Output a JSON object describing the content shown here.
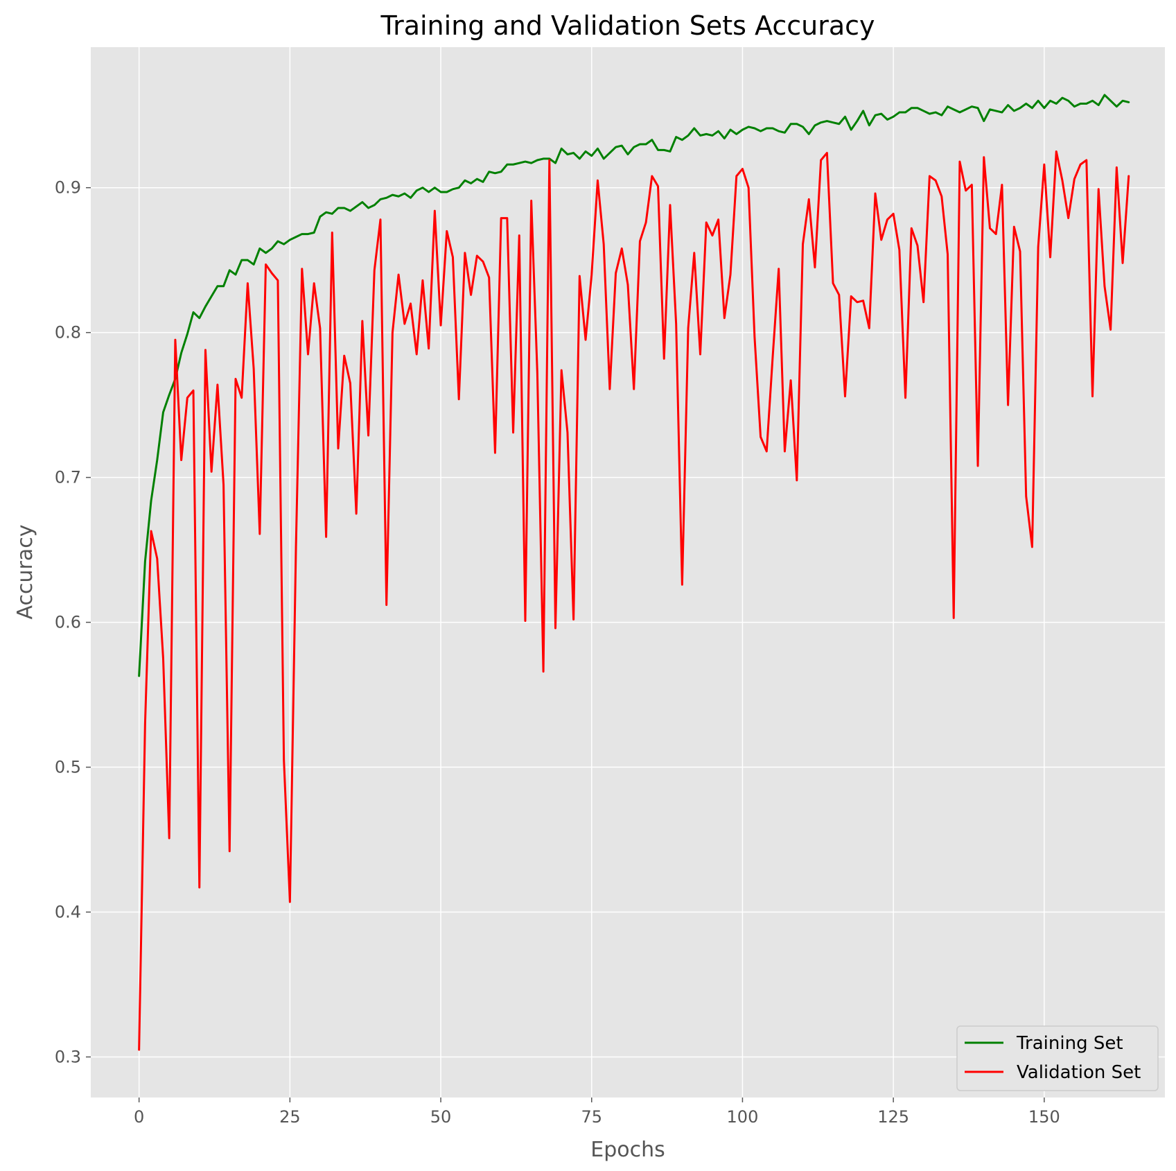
{
  "chart_data": {
    "type": "line",
    "title": "Training and Validation Sets Accuracy",
    "xlabel": "Epochs",
    "ylabel": "Accuracy",
    "xlim": [
      -8,
      170
    ],
    "ylim": [
      0.272,
      0.997
    ],
    "xticks": [
      0,
      25,
      50,
      75,
      100,
      125,
      150
    ],
    "yticks": [
      0.3,
      0.4,
      0.5,
      0.6,
      0.7,
      0.8,
      0.9
    ],
    "grid": true,
    "legend_position": "lower-right",
    "colors": {
      "background": "#e5e5e5",
      "grid": "#ffffff",
      "training": "#008000",
      "validation": "#ff0000"
    },
    "series": [
      {
        "name": "Training Set",
        "color": "#008000",
        "x": [
          0,
          1,
          2,
          3,
          4,
          5,
          6,
          7,
          8,
          9,
          10,
          11,
          12,
          13,
          14,
          15,
          16,
          17,
          18,
          19,
          20,
          21,
          22,
          23,
          24,
          25,
          26,
          27,
          28,
          29,
          30,
          31,
          32,
          33,
          34,
          35,
          36,
          37,
          38,
          39,
          40,
          41,
          42,
          43,
          44,
          45,
          46,
          47,
          48,
          49,
          50,
          51,
          52,
          53,
          54,
          55,
          56,
          57,
          58,
          59,
          60,
          61,
          62,
          63,
          64,
          65,
          66,
          67,
          68,
          69,
          70,
          71,
          72,
          73,
          74,
          75,
          76,
          77,
          78,
          79,
          80,
          81,
          82,
          83,
          84,
          85,
          86,
          87,
          88,
          89,
          90,
          91,
          92,
          93,
          94,
          95,
          96,
          97,
          98,
          99,
          100,
          101,
          102,
          103,
          104,
          105,
          106,
          107,
          108,
          109,
          110,
          111,
          112,
          113,
          114,
          115,
          116,
          117,
          118,
          119,
          120,
          121,
          122,
          123,
          124,
          125,
          126,
          127,
          128,
          129,
          130,
          131,
          132,
          133,
          134,
          135,
          136,
          137,
          138,
          139,
          140,
          141,
          142,
          143,
          144,
          145,
          146,
          147,
          148,
          149,
          150,
          151,
          152,
          153,
          154,
          155,
          156,
          157,
          158,
          159,
          160,
          161,
          162,
          163,
          164
        ],
        "y": [
          0.563,
          0.642,
          0.684,
          0.712,
          0.745,
          0.757,
          0.768,
          0.786,
          0.799,
          0.814,
          0.81,
          0.818,
          0.825,
          0.832,
          0.832,
          0.843,
          0.84,
          0.85,
          0.85,
          0.847,
          0.858,
          0.855,
          0.858,
          0.863,
          0.861,
          0.864,
          0.866,
          0.868,
          0.868,
          0.869,
          0.88,
          0.883,
          0.882,
          0.886,
          0.886,
          0.884,
          0.887,
          0.89,
          0.886,
          0.888,
          0.892,
          0.893,
          0.895,
          0.894,
          0.896,
          0.893,
          0.898,
          0.9,
          0.897,
          0.9,
          0.897,
          0.897,
          0.899,
          0.9,
          0.905,
          0.903,
          0.906,
          0.904,
          0.911,
          0.91,
          0.911,
          0.916,
          0.916,
          0.917,
          0.918,
          0.917,
          0.919,
          0.92,
          0.92,
          0.917,
          0.927,
          0.923,
          0.924,
          0.92,
          0.925,
          0.922,
          0.927,
          0.92,
          0.924,
          0.928,
          0.929,
          0.923,
          0.928,
          0.93,
          0.93,
          0.933,
          0.926,
          0.926,
          0.925,
          0.935,
          0.933,
          0.936,
          0.941,
          0.936,
          0.937,
          0.936,
          0.939,
          0.934,
          0.94,
          0.937,
          0.94,
          0.942,
          0.941,
          0.939,
          0.941,
          0.941,
          0.939,
          0.938,
          0.944,
          0.944,
          0.942,
          0.937,
          0.943,
          0.945,
          0.946,
          0.945,
          0.944,
          0.949,
          0.94,
          0.946,
          0.953,
          0.943,
          0.95,
          0.951,
          0.947,
          0.949,
          0.952,
          0.952,
          0.955,
          0.955,
          0.953,
          0.951,
          0.952,
          0.95,
          0.956,
          0.954,
          0.952,
          0.954,
          0.956,
          0.955,
          0.946,
          0.954,
          0.953,
          0.952,
          0.957,
          0.953,
          0.955,
          0.958,
          0.955,
          0.96,
          0.955,
          0.96,
          0.958,
          0.962,
          0.96,
          0.956,
          0.958,
          0.958,
          0.96,
          0.957,
          0.964,
          0.96,
          0.956,
          0.96,
          0.959
        ]
      },
      {
        "name": "Validation Set",
        "color": "#ff0000",
        "x": [
          0,
          1,
          2,
          3,
          4,
          5,
          6,
          7,
          8,
          9,
          10,
          11,
          12,
          13,
          14,
          15,
          16,
          17,
          18,
          19,
          20,
          21,
          22,
          23,
          24,
          25,
          26,
          27,
          28,
          29,
          30,
          31,
          32,
          33,
          34,
          35,
          36,
          37,
          38,
          39,
          40,
          41,
          42,
          43,
          44,
          45,
          46,
          47,
          48,
          49,
          50,
          51,
          52,
          53,
          54,
          55,
          56,
          57,
          58,
          59,
          60,
          61,
          62,
          63,
          64,
          65,
          66,
          67,
          68,
          69,
          70,
          71,
          72,
          73,
          74,
          75,
          76,
          77,
          78,
          79,
          80,
          81,
          82,
          83,
          84,
          85,
          86,
          87,
          88,
          89,
          90,
          91,
          92,
          93,
          94,
          95,
          96,
          97,
          98,
          99,
          100,
          101,
          102,
          103,
          104,
          105,
          106,
          107,
          108,
          109,
          110,
          111,
          112,
          113,
          114,
          115,
          116,
          117,
          118,
          119,
          120,
          121,
          122,
          123,
          124,
          125,
          126,
          127,
          128,
          129,
          130,
          131,
          132,
          133,
          134,
          135,
          136,
          137,
          138,
          139,
          140,
          141,
          142,
          143,
          144,
          145,
          146,
          147,
          148,
          149,
          150,
          151,
          152,
          153,
          154,
          155,
          156,
          157,
          158,
          159,
          160,
          161,
          162,
          163,
          164
        ],
        "y": [
          0.305,
          0.53,
          0.663,
          0.644,
          0.575,
          0.451,
          0.795,
          0.712,
          0.755,
          0.76,
          0.417,
          0.788,
          0.704,
          0.764,
          0.695,
          0.442,
          0.768,
          0.755,
          0.834,
          0.775,
          0.661,
          0.847,
          0.841,
          0.836,
          0.505,
          0.407,
          0.652,
          0.844,
          0.785,
          0.834,
          0.803,
          0.659,
          0.869,
          0.72,
          0.784,
          0.765,
          0.675,
          0.808,
          0.729,
          0.843,
          0.878,
          0.612,
          0.8,
          0.84,
          0.806,
          0.82,
          0.785,
          0.836,
          0.789,
          0.884,
          0.805,
          0.87,
          0.852,
          0.754,
          0.855,
          0.826,
          0.853,
          0.849,
          0.838,
          0.717,
          0.879,
          0.879,
          0.731,
          0.867,
          0.601,
          0.891,
          0.772,
          0.566,
          0.919,
          0.596,
          0.774,
          0.731,
          0.602,
          0.839,
          0.795,
          0.84,
          0.905,
          0.861,
          0.761,
          0.841,
          0.858,
          0.833,
          0.761,
          0.863,
          0.876,
          0.908,
          0.901,
          0.782,
          0.888,
          0.806,
          0.626,
          0.803,
          0.855,
          0.785,
          0.876,
          0.867,
          0.878,
          0.81,
          0.84,
          0.908,
          0.913,
          0.9,
          0.797,
          0.728,
          0.718,
          0.783,
          0.844,
          0.718,
          0.767,
          0.698,
          0.861,
          0.892,
          0.845,
          0.919,
          0.924,
          0.834,
          0.826,
          0.756,
          0.825,
          0.821,
          0.822,
          0.803,
          0.896,
          0.864,
          0.878,
          0.882,
          0.857,
          0.755,
          0.872,
          0.86,
          0.821,
          0.908,
          0.905,
          0.894,
          0.854,
          0.603,
          0.918,
          0.898,
          0.902,
          0.708,
          0.921,
          0.872,
          0.868,
          0.902,
          0.75,
          0.873,
          0.856,
          0.687,
          0.652,
          0.859,
          0.916,
          0.852,
          0.925,
          0.905,
          0.879,
          0.906,
          0.916,
          0.919,
          0.756,
          0.899,
          0.832,
          0.802,
          0.914,
          0.848,
          0.908
        ]
      }
    ]
  }
}
